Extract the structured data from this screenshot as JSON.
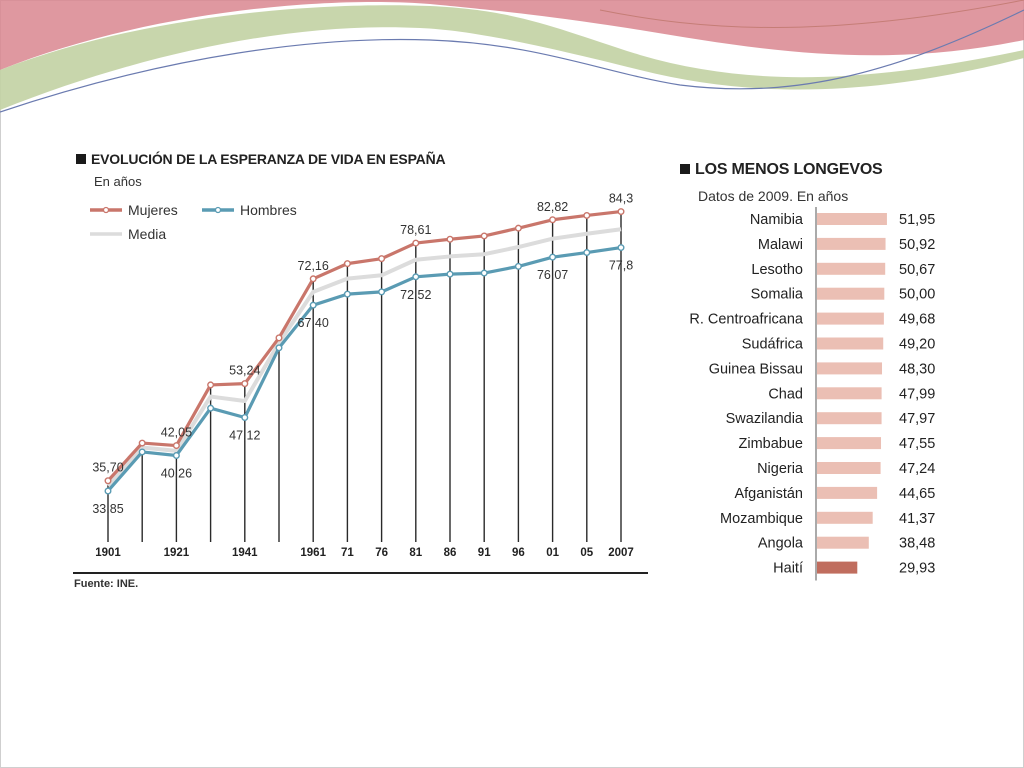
{
  "colors": {
    "mujeres": "#c9766b",
    "hombres": "#5a9bb3",
    "media": "#dcdcdc",
    "bar": "#ebbfb4",
    "bar_highlight": "#c06d5e",
    "wave_pink": "#d9868f",
    "wave_green": "#b9c99a"
  },
  "left_panel": {
    "title": "EVOLUCIÓN DE LA ESPERANZA DE VIDA EN ESPAÑA",
    "units": "En años"
  },
  "right_panel": {
    "title": "LOS MENOS LONGEVOS",
    "subtitle": "Datos de 2009. En años"
  },
  "source": "Fuente: INE.",
  "chart_data": [
    {
      "type": "line",
      "x": [
        "1901",
        "1911",
        "1921",
        "1931",
        "1941",
        "1951",
        "1961",
        "71",
        "76",
        "81",
        "86",
        "91",
        "96",
        "01",
        "05",
        "2007"
      ],
      "tick_labels": [
        "1901",
        "",
        "1921",
        "",
        "1941",
        "",
        "1961",
        "71",
        "76",
        "81",
        "86",
        "91",
        "96",
        "01",
        "05",
        "2007"
      ],
      "series": [
        {
          "name": "Mujeres",
          "values": [
            35.7,
            42.5,
            42.05,
            53.0,
            53.24,
            61.5,
            72.16,
            74.9,
            75.8,
            78.61,
            79.3,
            79.9,
            81.3,
            82.82,
            83.6,
            84.3
          ]
        },
        {
          "name": "Hombres",
          "values": [
            33.85,
            40.9,
            40.26,
            48.8,
            47.12,
            59.7,
            67.4,
            69.4,
            69.8,
            72.52,
            73.0,
            73.2,
            74.4,
            76.07,
            76.9,
            77.8
          ]
        },
        {
          "name": "Media",
          "values": [
            34.8,
            41.7,
            41.1,
            50.9,
            50.1,
            60.6,
            69.8,
            72.2,
            72.8,
            75.6,
            76.2,
            76.6,
            77.9,
            79.4,
            80.3,
            81.1
          ]
        }
      ],
      "data_labels": [
        {
          "series": "Mujeres",
          "index": 0,
          "text": "35,70"
        },
        {
          "series": "Mujeres",
          "index": 2,
          "text": "42,05"
        },
        {
          "series": "Mujeres",
          "index": 4,
          "text": "53,24"
        },
        {
          "series": "Mujeres",
          "index": 6,
          "text": "72,16"
        },
        {
          "series": "Mujeres",
          "index": 9,
          "text": "78,61"
        },
        {
          "series": "Mujeres",
          "index": 13,
          "text": "82,82"
        },
        {
          "series": "Mujeres",
          "index": 15,
          "text": "84,3"
        },
        {
          "series": "Hombres",
          "index": 0,
          "text": "33,85"
        },
        {
          "series": "Hombres",
          "index": 2,
          "text": "40,26"
        },
        {
          "series": "Hombres",
          "index": 4,
          "text": "47,12"
        },
        {
          "series": "Hombres",
          "index": 6,
          "text": "67,40"
        },
        {
          "series": "Hombres",
          "index": 9,
          "text": "72,52"
        },
        {
          "series": "Hombres",
          "index": 13,
          "text": "76,07"
        },
        {
          "series": "Hombres",
          "index": 15,
          "text": "77,8"
        }
      ],
      "ylim": [
        25,
        90
      ],
      "grid": false,
      "legend_position": "top-left"
    },
    {
      "type": "bar",
      "orientation": "horizontal",
      "categories": [
        "Namibia",
        "Malawi",
        "Lesotho",
        "Somalia",
        "R. Centroafricana",
        "Sudáfrica",
        "Guinea Bissau",
        "Chad",
        "Swazilandia",
        "Zimbabue",
        "Nigeria",
        "Afganistán",
        "Mozambique",
        "Angola",
        "Haití"
      ],
      "values": [
        51.95,
        50.92,
        50.67,
        50.0,
        49.68,
        49.2,
        48.3,
        47.99,
        47.97,
        47.55,
        47.24,
        44.65,
        41.37,
        38.48,
        29.93
      ],
      "value_labels": [
        "51,95",
        "50,92",
        "50,67",
        "50,00",
        "49,68",
        "49,20",
        "48,30",
        "47,99",
        "47,97",
        "47,55",
        "47,24",
        "44,65",
        "41,37",
        "38,48",
        "29,93"
      ],
      "highlight_category": "Haití",
      "xlim": [
        0,
        52
      ],
      "grid": false
    }
  ]
}
